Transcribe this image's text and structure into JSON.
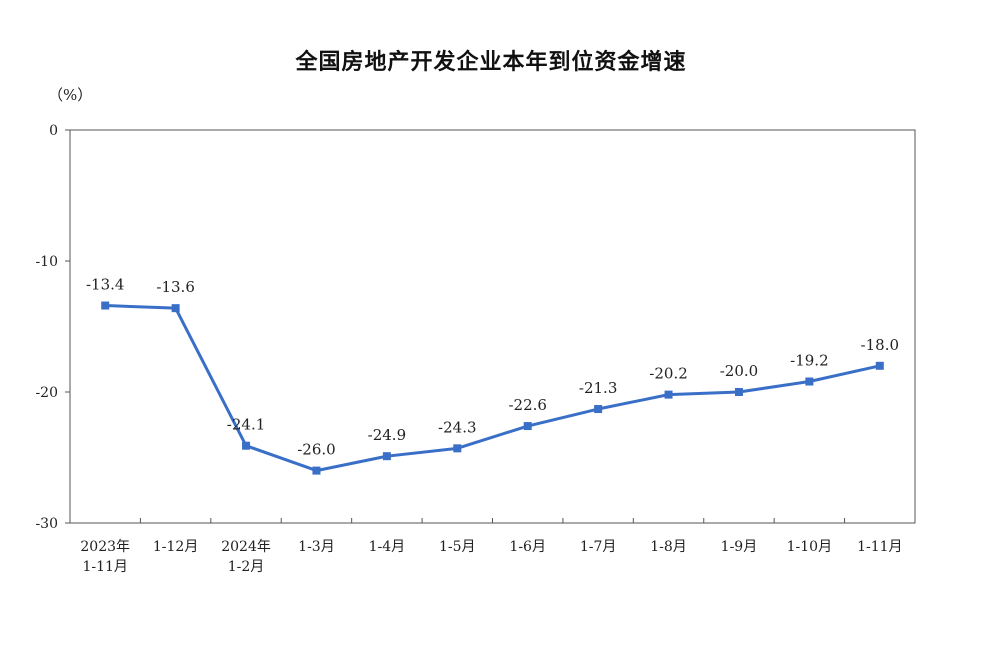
{
  "chart_data": {
    "type": "line",
    "title": "全国房地产开发企业本年到位资金增速",
    "unit": "（%）",
    "xlabel": "",
    "ylabel": "",
    "ylim": [
      -30,
      0
    ],
    "yticks": [
      0,
      -10,
      -20,
      -30
    ],
    "categories": [
      [
        "2023年",
        "1-11月"
      ],
      [
        "1-12月"
      ],
      [
        "2024年",
        "1-2月"
      ],
      [
        "1-3月"
      ],
      [
        "1-4月"
      ],
      [
        "1-5月"
      ],
      [
        "1-6月"
      ],
      [
        "1-7月"
      ],
      [
        "1-8月"
      ],
      [
        "1-9月"
      ],
      [
        "1-10月"
      ],
      [
        "1-11月"
      ]
    ],
    "values": [
      -13.4,
      -13.6,
      -24.1,
      -26.0,
      -24.9,
      -24.3,
      -22.6,
      -21.3,
      -20.2,
      -20.0,
      -19.2,
      -18.0
    ],
    "labels": [
      "-13.4",
      "-13.6",
      "-24.1",
      "-26.0",
      "-24.9",
      "-24.3",
      "-22.6",
      "-21.3",
      "-20.2",
      "-20.0",
      "-19.2",
      "-18.0"
    ],
    "series_color": "#3a6fc8",
    "grid": false,
    "legend": "none"
  }
}
